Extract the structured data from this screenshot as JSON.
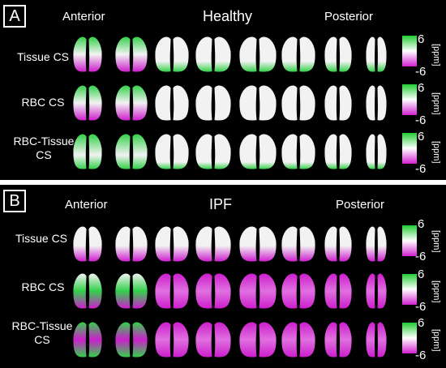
{
  "panels": [
    {
      "letter": "A",
      "group_title": "Healthy",
      "view_start": "Anterior",
      "view_end": "Posterior",
      "rows": [
        {
          "label_lines": [
            "Tissue CS"
          ]
        },
        {
          "label_lines": [
            "RBC CS"
          ]
        },
        {
          "label_lines": [
            "RBC-Tissue",
            "CS"
          ]
        }
      ],
      "colorbar": {
        "max": "6",
        "min": "-6",
        "unit": "[ppm]",
        "colors": [
          "#22cc33",
          "#ffffff",
          "#d020d0"
        ]
      }
    },
    {
      "letter": "B",
      "group_title": "IPF",
      "view_start": "Anterior",
      "view_end": "Posterior",
      "rows": [
        {
          "label_lines": [
            "Tissue CS"
          ]
        },
        {
          "label_lines": [
            "RBC CS"
          ]
        },
        {
          "label_lines": [
            "RBC-Tissue",
            "CS"
          ]
        }
      ],
      "colorbar": {
        "max": "6",
        "min": "-6",
        "unit": "[ppm]",
        "colors": [
          "#22cc33",
          "#ffffff",
          "#d020d0"
        ]
      }
    }
  ],
  "colors": {
    "background": "#000000",
    "green": "#33d04a",
    "white": "#f2f2f2",
    "magenta": "#cc1ecc"
  }
}
